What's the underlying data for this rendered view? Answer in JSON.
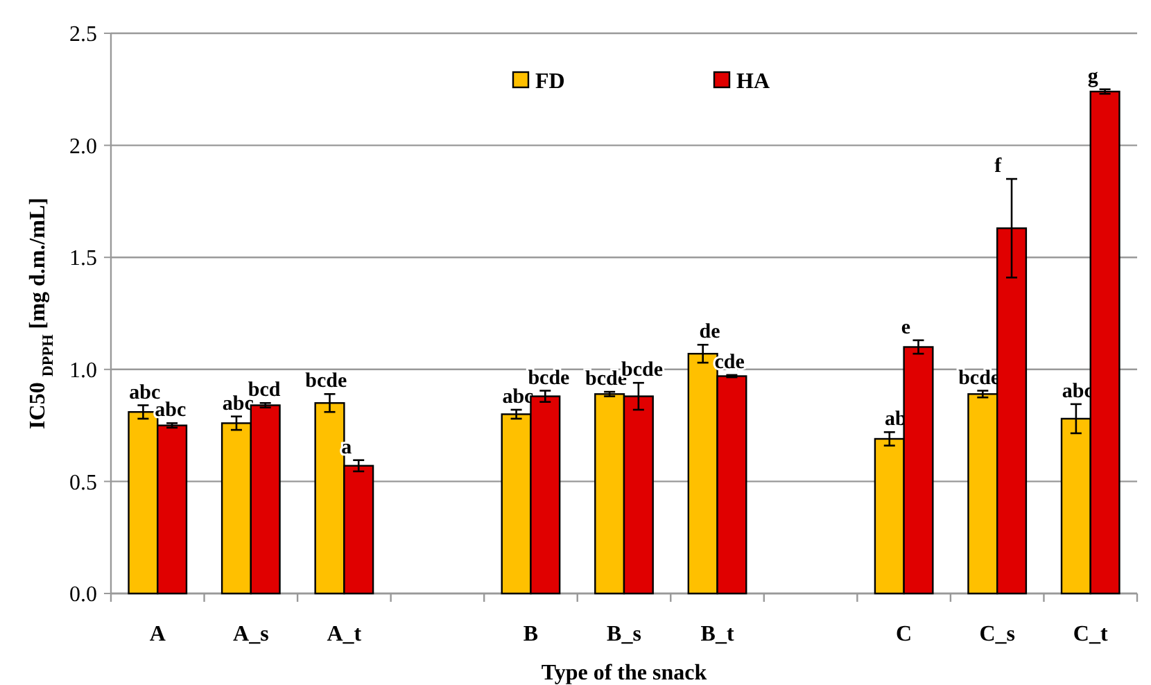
{
  "chart_data": {
    "type": "bar",
    "xlabel": "Type of the snack",
    "ylabel": "IC50 $_{DPPH}$ [mg d.m./mL]",
    "categories": [
      "A",
      "A_s",
      "A_t",
      null,
      "B",
      "B_s",
      "B_t",
      null,
      "C",
      "C_s",
      "C_t"
    ],
    "series": [
      {
        "name": "FD",
        "color": "#ffc000",
        "values": [
          0.81,
          0.76,
          0.85,
          null,
          0.8,
          0.89,
          1.07,
          null,
          0.69,
          0.89,
          0.78
        ],
        "errors": [
          0.03,
          0.03,
          0.04,
          null,
          0.02,
          0.01,
          0.04,
          null,
          0.03,
          0.015,
          0.065
        ],
        "value_labels": [
          "abc",
          "abc",
          "bcde",
          null,
          "abc",
          "bcde",
          "de",
          null,
          "ab",
          "bcde",
          "abc"
        ]
      },
      {
        "name": "HA",
        "color": "#e00000",
        "values": [
          0.75,
          0.84,
          0.57,
          null,
          0.88,
          0.88,
          0.97,
          null,
          1.1,
          1.63,
          2.24
        ],
        "errors": [
          0.01,
          0.01,
          0.025,
          null,
          0.025,
          0.06,
          0.005,
          null,
          0.03,
          0.22,
          0.01
        ],
        "value_labels": [
          "abc",
          "bcd",
          "a",
          null,
          "bcde",
          "bcde",
          "cde",
          null,
          "e",
          "f",
          "g"
        ]
      }
    ],
    "ylim": [
      0,
      2.5
    ],
    "yticks": [
      {
        "value": 0,
        "label": "0.0"
      },
      {
        "value": 0.5,
        "label": "0.5"
      },
      {
        "value": 1,
        "label": "1.0"
      },
      {
        "value": 1.5,
        "label": "1.5"
      },
      {
        "value": 2,
        "label": "2.0"
      },
      {
        "value": 2.5,
        "label": "2.5"
      }
    ],
    "grid": "y",
    "legend": "top"
  }
}
